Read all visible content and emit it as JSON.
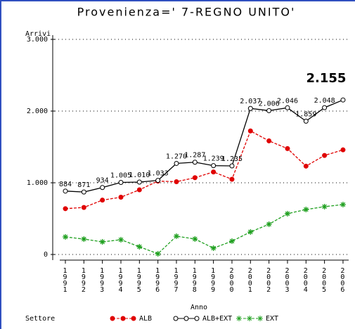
{
  "chart_data": {
    "type": "line",
    "title": "Provenienza=' 7-REGNO UNITO'",
    "y_label": "Arrivi",
    "x_label": "Anno",
    "legend_title": "Settore",
    "categories": [
      "1991",
      "1992",
      "1993",
      "1994",
      "1995",
      "1996",
      "1997",
      "1998",
      "1999",
      "2000",
      "2001",
      "2002",
      "2003",
      "2004",
      "2005",
      "2006"
    ],
    "ylim": [
      0,
      3000
    ],
    "yticks": [
      0,
      {
        "value": 1000,
        "label": "1.000"
      },
      {
        "value": 2000,
        "label": "2.000"
      },
      {
        "value": 3000,
        "label": "3.000"
      }
    ],
    "grid": true,
    "series": [
      {
        "name": "ALB",
        "color": "#e00000",
        "marker": "dot",
        "dashed": true,
        "values": [
          639,
          656,
          758,
          799,
          902,
          1023,
          1015,
          1071,
          1151,
          1049,
          1723,
          1584,
          1477,
          1232,
          1381,
          1459
        ]
      },
      {
        "name": "ALB+EXT",
        "color": "#000000",
        "marker": "circle",
        "dashed": false,
        "values": [
          884,
          871,
          934,
          1005,
          1010,
          1033,
          1270,
          1287,
          1239,
          1235,
          2037,
          2006,
          2046,
          1859,
          2048,
          2155
        ],
        "value_labels": [
          "884",
          "871",
          "934",
          "1.005",
          "1.010",
          "1.033",
          "1.270",
          "1.287",
          "1.239",
          "1.235",
          "2.037",
          "2.006",
          "2.046",
          "1.859",
          "2.048",
          "2.155"
        ]
      },
      {
        "name": "EXT",
        "color": "#20a020",
        "marker": "star",
        "dashed": true,
        "values": [
          245,
          215,
          176,
          206,
          108,
          10,
          255,
          216,
          88,
          186,
          314,
          422,
          569,
          627,
          667,
          696
        ]
      }
    ]
  }
}
